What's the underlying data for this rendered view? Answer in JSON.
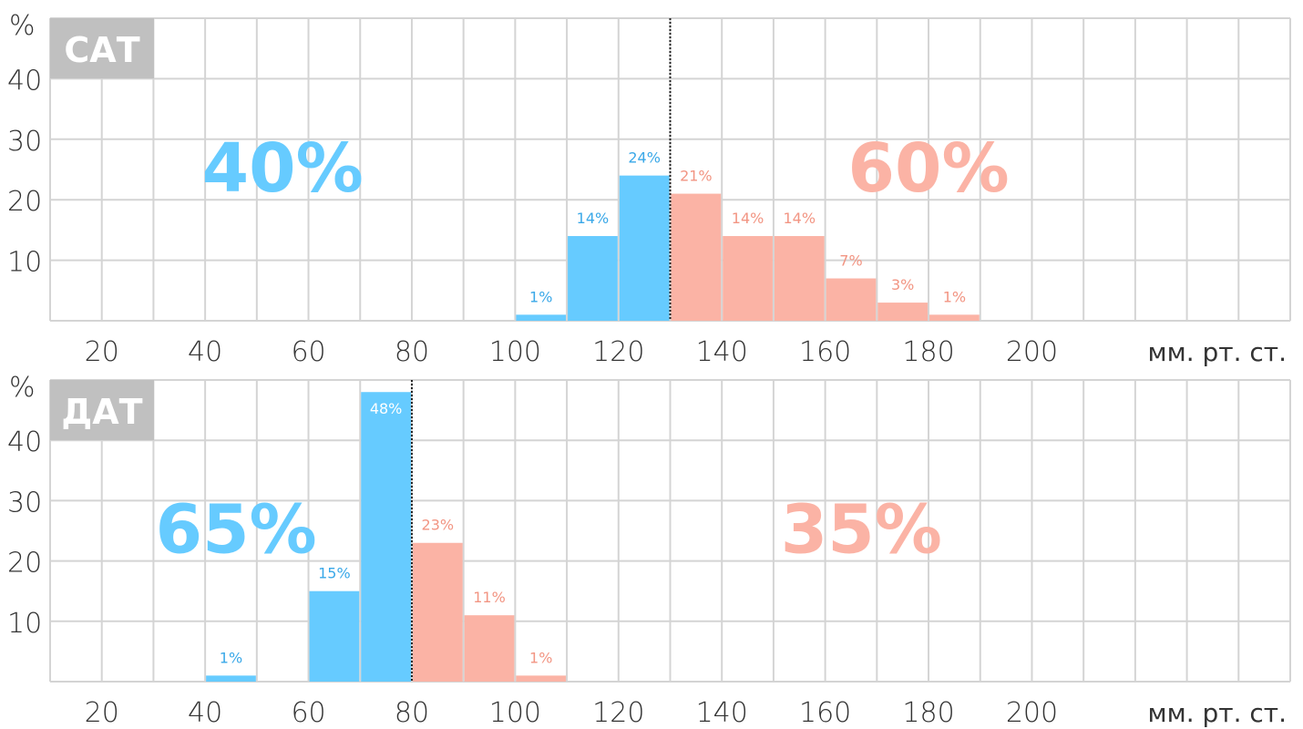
{
  "colors": {
    "left": "#66cbff",
    "right": "#fbb3a5",
    "left_label": "#3aa8e8",
    "right_label": "#f29583",
    "grid": "#d4d4d4",
    "tag_bg": "#c0c0c0"
  },
  "chart_data": [
    {
      "type": "bar",
      "tag": "САТ",
      "y_symbol": "%",
      "unit": "мм. рт. ст.",
      "x_range": [
        10,
        250
      ],
      "y_range": [
        0,
        50
      ],
      "x_ticks": [
        "20",
        "40",
        "60",
        "80",
        "100",
        "120",
        "140",
        "160",
        "180",
        "200"
      ],
      "y_ticks": [
        "10",
        "20",
        "30",
        "40"
      ],
      "grid": true,
      "threshold": 130,
      "summary_left": "40%",
      "summary_right": "60%",
      "bins": [
        {
          "from": 100,
          "to": 110,
          "value": 1,
          "label": "1%",
          "group": "left"
        },
        {
          "from": 110,
          "to": 120,
          "value": 14,
          "label": "14%",
          "group": "left"
        },
        {
          "from": 120,
          "to": 130,
          "value": 24,
          "label": "24%",
          "group": "left"
        },
        {
          "from": 130,
          "to": 140,
          "value": 21,
          "label": "21%",
          "group": "right"
        },
        {
          "from": 140,
          "to": 150,
          "value": 14,
          "label": "14%",
          "group": "right"
        },
        {
          "from": 150,
          "to": 160,
          "value": 14,
          "label": "14%",
          "group": "right"
        },
        {
          "from": 160,
          "to": 170,
          "value": 7,
          "label": "7%",
          "group": "right"
        },
        {
          "from": 170,
          "to": 180,
          "value": 3,
          "label": "3%",
          "group": "right"
        },
        {
          "from": 180,
          "to": 190,
          "value": 1,
          "label": "1%",
          "group": "right"
        }
      ]
    },
    {
      "type": "bar",
      "tag": "ДАТ",
      "y_symbol": "%",
      "unit": "мм. рт. ст.",
      "x_range": [
        10,
        250
      ],
      "y_range": [
        0,
        50
      ],
      "x_ticks": [
        "20",
        "40",
        "60",
        "80",
        "100",
        "120",
        "140",
        "160",
        "180",
        "200"
      ],
      "y_ticks": [
        "10",
        "20",
        "30",
        "40"
      ],
      "grid": true,
      "threshold": 80,
      "summary_left": "65%",
      "summary_right": "35%",
      "bins": [
        {
          "from": 40,
          "to": 50,
          "value": 1,
          "label": "1%",
          "group": "left"
        },
        {
          "from": 60,
          "to": 70,
          "value": 15,
          "label": "15%",
          "group": "left"
        },
        {
          "from": 70,
          "to": 80,
          "value": 48,
          "label": "48%",
          "group": "left"
        },
        {
          "from": 80,
          "to": 90,
          "value": 23,
          "label": "23%",
          "group": "right"
        },
        {
          "from": 90,
          "to": 100,
          "value": 11,
          "label": "11%",
          "group": "right"
        },
        {
          "from": 100,
          "to": 110,
          "value": 1,
          "label": "1%",
          "group": "right"
        }
      ]
    }
  ]
}
